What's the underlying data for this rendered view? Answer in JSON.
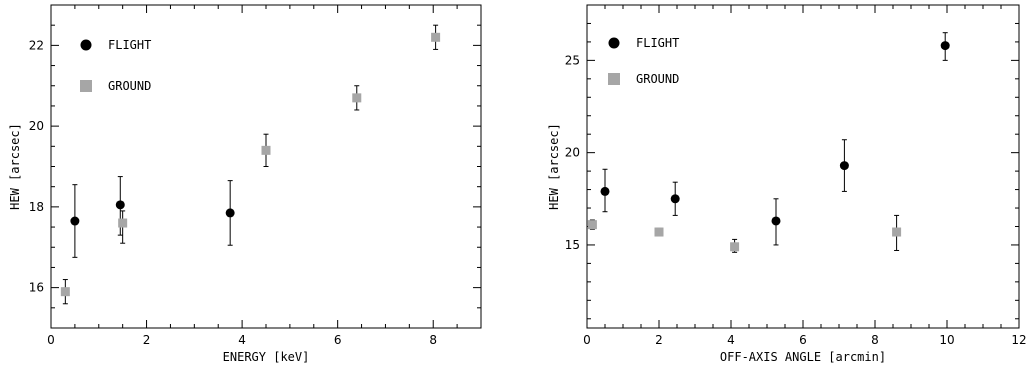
{
  "colors": {
    "flight": "#000000",
    "ground": "#a6a6a6",
    "frame": "#000000"
  },
  "chart_data": [
    {
      "type": "scatter",
      "xlabel": "ENERGY [keV]",
      "ylabel": "HEW [arcsec]",
      "xlim": [
        0,
        9
      ],
      "ylim": [
        15,
        23
      ],
      "xticks": [
        0,
        2,
        4,
        6,
        8
      ],
      "xticks_minor_step": 0.5,
      "yticks": [
        16,
        18,
        20,
        22
      ],
      "yticks_minor_step": 0.5,
      "legend_placement": "top-left",
      "series": [
        {
          "name": "FLIGHT",
          "marker": "circle",
          "points": [
            {
              "x": 0.5,
              "y": 17.65,
              "lo": 16.75,
              "hi": 18.55
            },
            {
              "x": 1.45,
              "y": 18.05,
              "lo": 17.3,
              "hi": 18.75
            },
            {
              "x": 3.75,
              "y": 17.85,
              "lo": 17.05,
              "hi": 18.65
            }
          ]
        },
        {
          "name": "GROUND",
          "marker": "square",
          "points": [
            {
              "x": 0.3,
              "y": 15.9,
              "lo": 15.6,
              "hi": 16.2
            },
            {
              "x": 1.5,
              "y": 17.6,
              "lo": 17.1,
              "hi": 17.9
            },
            {
              "x": 4.5,
              "y": 19.4,
              "lo": 19.0,
              "hi": 19.8
            },
            {
              "x": 6.4,
              "y": 20.7,
              "lo": 20.4,
              "hi": 21.0
            },
            {
              "x": 8.05,
              "y": 22.2,
              "lo": 21.9,
              "hi": 22.5
            }
          ]
        }
      ]
    },
    {
      "type": "scatter",
      "xlabel": "OFF-AXIS ANGLE  [arcmin]",
      "ylabel": "HEW  [arcsec]",
      "xlim": [
        0,
        12
      ],
      "ylim": [
        10.5,
        28
      ],
      "xticks": [
        0,
        2,
        4,
        6,
        8,
        10,
        12
      ],
      "xticks_minor_step": 0.5,
      "yticks": [
        15,
        20,
        25
      ],
      "yticks_minor_step": 1,
      "legend_placement": "top-left",
      "series": [
        {
          "name": "FLIGHT",
          "marker": "circle",
          "points": [
            {
              "x": 0.5,
              "y": 17.9,
              "lo": 16.8,
              "hi": 19.1
            },
            {
              "x": 2.45,
              "y": 17.5,
              "lo": 16.6,
              "hi": 18.4
            },
            {
              "x": 5.25,
              "y": 16.3,
              "lo": 15.0,
              "hi": 17.5
            },
            {
              "x": 7.15,
              "y": 19.3,
              "lo": 17.9,
              "hi": 20.7
            },
            {
              "x": 9.95,
              "y": 25.8,
              "lo": 25.0,
              "hi": 26.5
            }
          ]
        },
        {
          "name": "GROUND",
          "marker": "square",
          "points": [
            {
              "x": 0.15,
              "y": 16.1,
              "lo": 15.85,
              "hi": 16.35
            },
            {
              "x": 2.0,
              "y": 15.7,
              "lo": 15.5,
              "hi": 15.9
            },
            {
              "x": 4.1,
              "y": 14.9,
              "lo": 14.6,
              "hi": 15.3
            },
            {
              "x": 8.6,
              "y": 15.7,
              "lo": 14.7,
              "hi": 16.6
            }
          ]
        }
      ]
    }
  ]
}
